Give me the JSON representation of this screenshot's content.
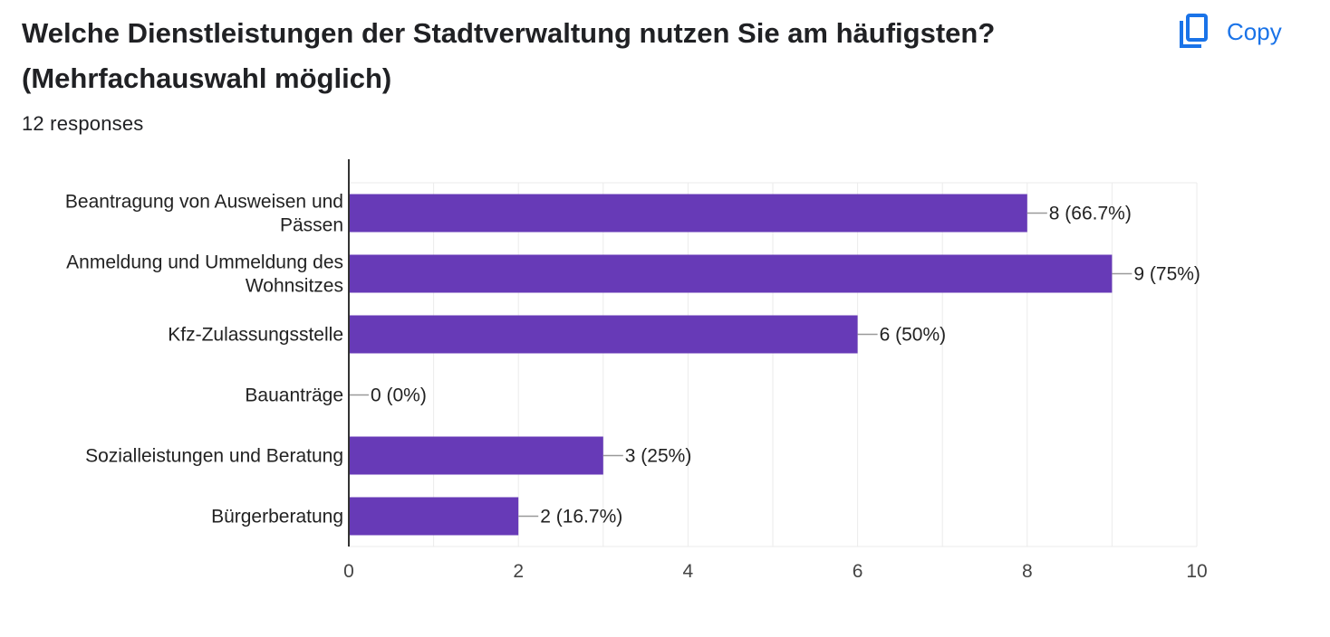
{
  "header": {
    "title": "Welche Dienstleistungen der Stadtverwaltung nutzen Sie am häufigsten? (Mehrfachauswahl möglich)",
    "responses": "12 responses",
    "copy_label": "Copy",
    "copy_icon": "copy-icon"
  },
  "colors": {
    "bar": "#673ab7",
    "accent": "#1a73e8"
  },
  "chart_data": {
    "type": "bar",
    "orientation": "horizontal",
    "categories": [
      [
        "Beantragung von Ausweisen und",
        "Pässen"
      ],
      [
        "Anmeldung und Ummeldung des",
        "Wohnsitzes"
      ],
      [
        "Kfz-Zulassungsstelle"
      ],
      [
        "Bauanträge"
      ],
      [
        "Sozialleistungen und Beratung"
      ],
      [
        "Bürgerberatung"
      ]
    ],
    "values": [
      8,
      9,
      6,
      0,
      3,
      2
    ],
    "data_labels": [
      "8 (66.7%)",
      "9 (75%)",
      "6 (50%)",
      "0 (0%)",
      "3 (25%)",
      "2 (16.7%)"
    ],
    "xlim": [
      0,
      10
    ],
    "xticks": [
      "0",
      "2",
      "4",
      "6",
      "8",
      "10"
    ],
    "grid": true,
    "title": "",
    "xlabel": "",
    "ylabel": ""
  }
}
